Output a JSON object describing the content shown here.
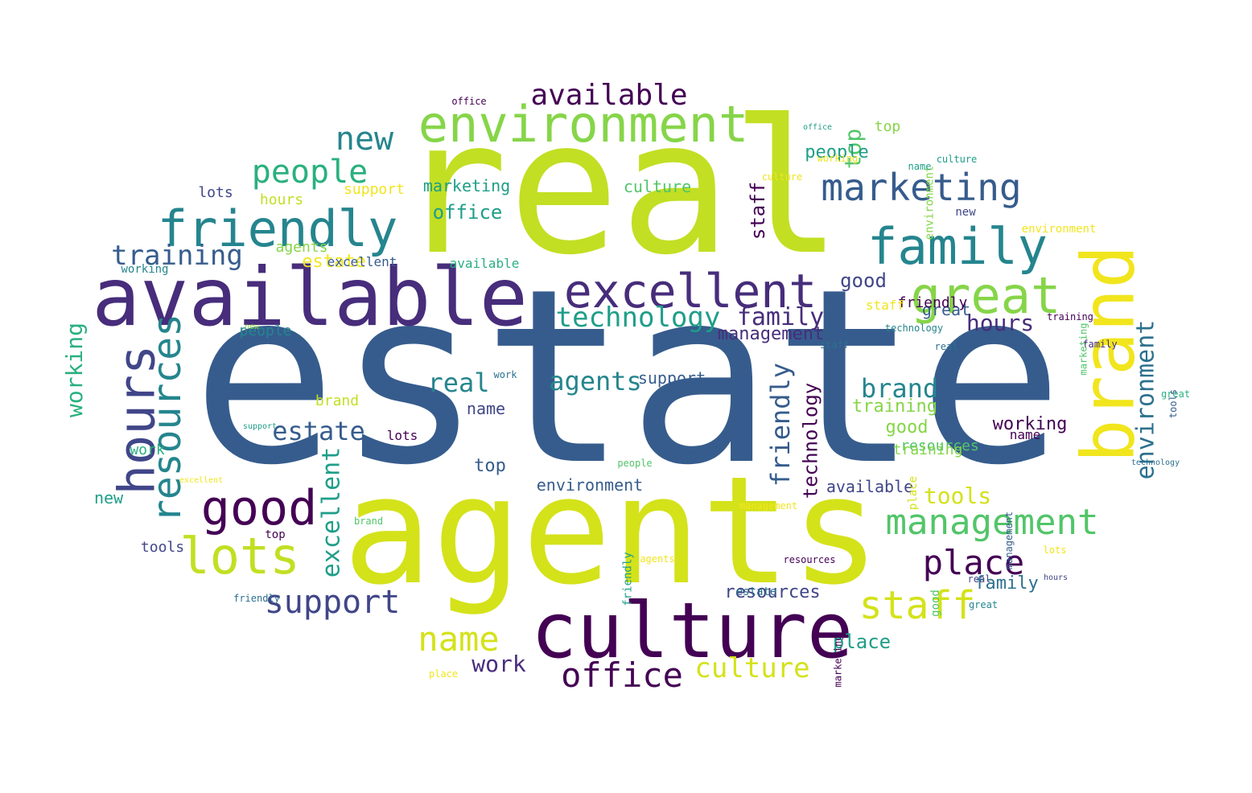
{
  "palette": {
    "lime": "#c2df23",
    "yellow_green": "#d4e21a",
    "yellow": "#f1e51d",
    "light_green": "#86d549",
    "green": "#52c569",
    "teal_green": "#2ab07f",
    "teal": "#1f9e89",
    "dark_teal": "#25858e",
    "steel_blue": "#2d708e",
    "blue": "#365c8d",
    "indigo": "#404688",
    "purple": "#472d7b",
    "dark_purple": "#440154"
  },
  "words": [
    {
      "text": "estate",
      "weight": 100,
      "color": "blue",
      "orientation": "horizontal"
    },
    {
      "text": "real",
      "weight": 78,
      "color": "lime",
      "orientation": "horizontal"
    },
    {
      "text": "agents",
      "weight": 68,
      "color": "yellow_green",
      "orientation": "horizontal"
    },
    {
      "text": "available",
      "weight": 42,
      "color": "purple",
      "orientation": "horizontal"
    },
    {
      "text": "culture",
      "weight": 40,
      "color": "dark_purple",
      "orientation": "horizontal"
    },
    {
      "text": "brand",
      "weight": 34,
      "color": "yellow",
      "orientation": "vertical"
    },
    {
      "text": "environment",
      "weight": 30,
      "color": "light_green",
      "orientation": "horizontal"
    },
    {
      "text": "excellent",
      "weight": 28,
      "color": "purple",
      "orientation": "horizontal"
    },
    {
      "text": "family",
      "weight": 28,
      "color": "dark_teal",
      "orientation": "horizontal"
    },
    {
      "text": "great",
      "weight": 28,
      "color": "light_green",
      "orientation": "horizontal"
    },
    {
      "text": "hours",
      "weight": 26,
      "color": "indigo",
      "orientation": "vertical"
    },
    {
      "text": "friendly",
      "weight": 26,
      "color": "dark_teal",
      "orientation": "horizontal"
    },
    {
      "text": "good",
      "weight": 24,
      "color": "dark_purple",
      "orientation": "horizontal"
    },
    {
      "text": "resources",
      "weight": 24,
      "color": "dark_teal",
      "orientation": "vertical"
    },
    {
      "text": "lots",
      "weight": 24,
      "color": "lime",
      "orientation": "horizontal"
    },
    {
      "text": "marketing",
      "weight": 22,
      "color": "blue",
      "orientation": "horizontal"
    },
    {
      "text": "management",
      "weight": 22,
      "color": "green",
      "orientation": "horizontal"
    },
    {
      "text": "place",
      "weight": 22,
      "color": "dark_purple",
      "orientation": "horizontal"
    },
    {
      "text": "staff",
      "weight": 22,
      "color": "yellow_green",
      "orientation": "horizontal"
    },
    {
      "text": "office",
      "weight": 22,
      "color": "dark_purple",
      "orientation": "horizontal"
    },
    {
      "text": "support",
      "weight": 20,
      "color": "indigo",
      "orientation": "horizontal"
    },
    {
      "text": "name",
      "weight": 20,
      "color": "yellow_green",
      "orientation": "horizontal"
    },
    {
      "text": "people",
      "weight": 20,
      "color": "teal_green",
      "orientation": "horizontal"
    },
    {
      "text": "new",
      "weight": 18,
      "color": "dark_teal",
      "orientation": "horizontal"
    },
    {
      "text": "technology",
      "weight": 18,
      "color": "teal",
      "orientation": "horizontal"
    },
    {
      "text": "available",
      "weight": 18,
      "color": "dark_purple",
      "orientation": "horizontal"
    },
    {
      "text": "excellent",
      "weight": 18,
      "color": "teal",
      "orientation": "vertical"
    },
    {
      "text": "environment",
      "weight": 16,
      "color": "steel_blue",
      "orientation": "vertical"
    },
    {
      "text": "culture",
      "weight": 16,
      "color": "yellow_green",
      "orientation": "horizontal"
    },
    {
      "text": "friendly",
      "weight": 16,
      "color": "blue",
      "orientation": "vertical"
    },
    {
      "text": "estate",
      "weight": 16,
      "color": "blue",
      "orientation": "horizontal"
    },
    {
      "text": "training",
      "weight": 16,
      "color": "blue",
      "orientation": "horizontal"
    },
    {
      "text": "agents",
      "weight": 16,
      "color": "dark_teal",
      "orientation": "horizontal"
    },
    {
      "text": "real",
      "weight": 16,
      "color": "dark_teal",
      "orientation": "horizontal"
    },
    {
      "text": "brand",
      "weight": 16,
      "color": "dark_teal",
      "orientation": "horizontal"
    },
    {
      "text": "tools",
      "weight": 15,
      "color": "yellow_green",
      "orientation": "horizontal"
    },
    {
      "text": "hours",
      "weight": 15,
      "color": "purple",
      "orientation": "horizontal"
    },
    {
      "text": "family",
      "weight": 15,
      "color": "purple",
      "orientation": "horizontal"
    },
    {
      "text": "work",
      "weight": 15,
      "color": "purple",
      "orientation": "horizontal"
    },
    {
      "text": "working",
      "weight": 14,
      "color": "teal_green",
      "orientation": "vertical"
    },
    {
      "text": "top",
      "weight": 14,
      "color": "green",
      "orientation": "vertical"
    },
    {
      "text": "staff",
      "weight": 14,
      "color": "dark_purple",
      "orientation": "vertical"
    },
    {
      "text": "technology",
      "weight": 14,
      "color": "dark_purple",
      "orientation": "vertical"
    },
    {
      "text": "people",
      "weight": 13,
      "color": "teal",
      "orientation": "horizontal"
    },
    {
      "text": "support",
      "weight": 12,
      "color": "blue",
      "orientation": "horizontal"
    },
    {
      "text": "training",
      "weight": 12,
      "color": "light_green",
      "orientation": "horizontal"
    },
    {
      "text": "marketing",
      "weight": 12,
      "color": "teal",
      "orientation": "horizontal"
    },
    {
      "text": "working",
      "weight": 12,
      "color": "dark_purple",
      "orientation": "horizontal"
    },
    {
      "text": "good",
      "weight": 12,
      "color": "light_green",
      "orientation": "horizontal"
    },
    {
      "text": "lots",
      "weight": 12,
      "color": "indigo",
      "orientation": "horizontal"
    },
    {
      "text": "available",
      "weight": 12,
      "color": "indigo",
      "orientation": "horizontal"
    },
    {
      "text": "resources",
      "weight": 12,
      "color": "indigo",
      "orientation": "horizontal"
    },
    {
      "text": "culture",
      "weight": 12,
      "color": "green",
      "orientation": "horizontal"
    },
    {
      "text": "new",
      "weight": 11,
      "color": "teal",
      "orientation": "horizontal"
    },
    {
      "text": "great",
      "weight": 11,
      "color": "blue",
      "orientation": "horizontal"
    },
    {
      "text": "good",
      "weight": 11,
      "color": "indigo",
      "orientation": "horizontal"
    },
    {
      "text": "name",
      "weight": 11,
      "color": "indigo",
      "orientation": "horizontal"
    },
    {
      "text": "office",
      "weight": 11,
      "color": "teal",
      "orientation": "horizontal"
    },
    {
      "text": "estate",
      "weight": 11,
      "color": "yellow",
      "orientation": "horizontal"
    },
    {
      "text": "top",
      "weight": 11,
      "color": "blue",
      "orientation": "horizontal"
    },
    {
      "text": "place",
      "weight": 11,
      "color": "teal",
      "orientation": "horizontal"
    },
    {
      "text": "management",
      "weight": 11,
      "color": "purple",
      "orientation": "horizontal"
    },
    {
      "text": "agents",
      "weight": 10,
      "color": "light_green",
      "orientation": "horizontal"
    },
    {
      "text": "support",
      "weight": 10,
      "color": "yellow",
      "orientation": "horizontal"
    },
    {
      "text": "hours",
      "weight": 10,
      "color": "lime",
      "orientation": "horizontal"
    },
    {
      "text": "resources",
      "weight": 10,
      "color": "green",
      "orientation": "horizontal"
    },
    {
      "text": "environment",
      "weight": 10,
      "color": "blue",
      "orientation": "horizontal"
    },
    {
      "text": "excellent",
      "weight": 10,
      "color": "blue",
      "orientation": "horizontal"
    },
    {
      "text": "brand",
      "weight": 10,
      "color": "lime",
      "orientation": "horizontal"
    },
    {
      "text": "friendly",
      "weight": 10,
      "color": "dark_purple",
      "orientation": "horizontal"
    },
    {
      "text": "training",
      "weight": 10,
      "color": "light_green",
      "orientation": "horizontal"
    },
    {
      "text": "top",
      "weight": 10,
      "color": "light_green",
      "orientation": "horizontal"
    },
    {
      "text": "people",
      "weight": 10,
      "color": "dark_teal",
      "orientation": "horizontal"
    },
    {
      "text": "staff",
      "weight": 10,
      "color": "yellow",
      "orientation": "horizontal"
    },
    {
      "text": "lots",
      "weight": 10,
      "color": "dark_purple",
      "orientation": "horizontal"
    },
    {
      "text": "family",
      "weight": 10,
      "color": "steel_blue",
      "orientation": "horizontal"
    },
    {
      "text": "work",
      "weight": 10,
      "color": "teal_green",
      "orientation": "horizontal"
    },
    {
      "text": "tools",
      "weight": 10,
      "color": "indigo",
      "orientation": "horizontal"
    },
    {
      "text": "place",
      "weight": 10,
      "color": "yellow_green",
      "orientation": "vertical"
    },
    {
      "text": "name",
      "weight": 9,
      "color": "dark_purple",
      "orientation": "horizontal"
    },
    {
      "text": "office",
      "weight": 9,
      "color": "teal",
      "orientation": "horizontal"
    },
    {
      "text": "real",
      "weight": 9,
      "color": "steel_blue",
      "orientation": "horizontal"
    },
    {
      "text": "working",
      "weight": 9,
      "color": "yellow",
      "orientation": "horizontal"
    },
    {
      "text": "marketing",
      "weight": 9,
      "color": "green",
      "orientation": "vertical"
    },
    {
      "text": "technology",
      "weight": 9,
      "color": "steel_blue",
      "orientation": "horizontal"
    },
    {
      "text": "culture",
      "weight": 9,
      "color": "teal",
      "orientation": "horizontal"
    },
    {
      "text": "new",
      "weight": 9,
      "color": "indigo",
      "orientation": "horizontal"
    },
    {
      "text": "available",
      "weight": 8,
      "color": "teal_green",
      "orientation": "horizontal"
    },
    {
      "text": "environment",
      "weight": 8,
      "color": "light_green",
      "orientation": "vertical"
    },
    {
      "text": "great",
      "weight": 8,
      "color": "teal_green",
      "orientation": "horizontal"
    },
    {
      "text": "tools",
      "weight": 8,
      "color": "blue",
      "orientation": "vertical"
    },
    {
      "text": "management",
      "weight": 8,
      "color": "blue",
      "orientation": "vertical"
    },
    {
      "text": "resources",
      "weight": 8,
      "color": "dark_purple",
      "orientation": "horizontal"
    },
    {
      "text": "friendly",
      "weight": 8,
      "color": "teal",
      "orientation": "vertical"
    },
    {
      "text": "estate",
      "weight": 8,
      "color": "steel_blue",
      "orientation": "horizontal"
    },
    {
      "text": "brand",
      "weight": 8,
      "color": "green",
      "orientation": "horizontal"
    },
    {
      "text": "top",
      "weight": 8,
      "color": "dark_purple",
      "orientation": "horizontal"
    },
    {
      "text": "good",
      "weight": 8,
      "color": "green",
      "orientation": "vertical"
    },
    {
      "text": "agents",
      "weight": 8,
      "color": "yellow",
      "orientation": "horizontal"
    },
    {
      "text": "people",
      "weight": 8,
      "color": "green",
      "orientation": "horizontal"
    },
    {
      "text": "staff",
      "weight": 8,
      "color": "steel_blue",
      "orientation": "horizontal"
    },
    {
      "text": "support",
      "weight": 8,
      "color": "teal",
      "orientation": "horizontal"
    },
    {
      "text": "family",
      "weight": 8,
      "color": "purple",
      "orientation": "horizontal"
    },
    {
      "text": "working",
      "weight": 8,
      "color": "dark_teal",
      "orientation": "horizontal"
    },
    {
      "text": "lots",
      "weight": 8,
      "color": "yellow",
      "orientation": "horizontal"
    },
    {
      "text": "training",
      "weight": 8,
      "color": "dark_purple",
      "orientation": "horizontal"
    },
    {
      "text": "name",
      "weight": 8,
      "color": "teal",
      "orientation": "horizontal"
    },
    {
      "text": "excellent",
      "weight": 8,
      "color": "yellow",
      "orientation": "horizontal"
    },
    {
      "text": "hours",
      "weight": 8,
      "color": "indigo",
      "orientation": "horizontal"
    },
    {
      "text": "office",
      "weight": 8,
      "color": "dark_purple",
      "orientation": "horizontal"
    },
    {
      "text": "work",
      "weight": 8,
      "color": "steel_blue",
      "orientation": "horizontal"
    },
    {
      "text": "friendly",
      "weight": 8,
      "color": "steel_blue",
      "orientation": "horizontal"
    },
    {
      "text": "great",
      "weight": 8,
      "color": "dark_teal",
      "orientation": "horizontal"
    },
    {
      "text": "place",
      "weight": 8,
      "color": "yellow",
      "orientation": "horizontal"
    },
    {
      "text": "technology",
      "weight": 8,
      "color": "dark_teal",
      "orientation": "horizontal"
    },
    {
      "text": "marketing",
      "weight": 8,
      "color": "dark_purple",
      "orientation": "vertical"
    },
    {
      "text": "environment",
      "weight": 8,
      "color": "yellow",
      "orientation": "horizontal"
    },
    {
      "text": "management",
      "weight": 8,
      "color": "yellow",
      "orientation": "horizontal"
    },
    {
      "text": "real",
      "weight": 8,
      "color": "indigo",
      "orientation": "horizontal"
    },
    {
      "text": "culture",
      "weight": 8,
      "color": "yellow",
      "orientation": "horizontal"
    },
    {
      "text": "new",
      "weight": 8,
      "color": "light_green",
      "orientation": "horizontal"
    }
  ]
}
